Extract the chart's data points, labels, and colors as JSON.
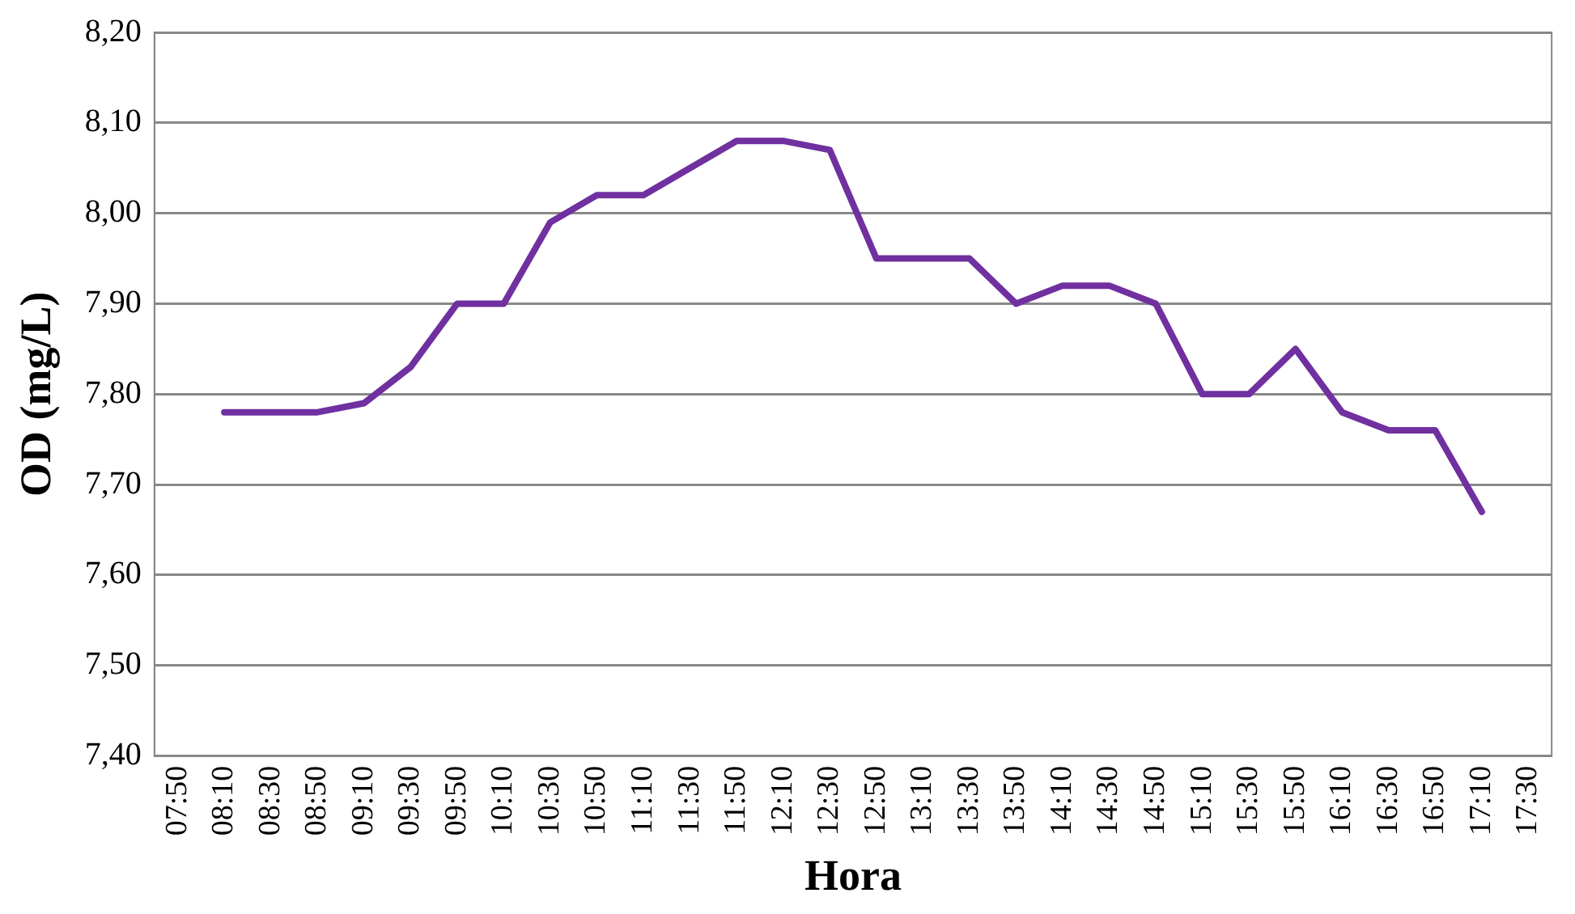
{
  "chart_data": {
    "type": "line",
    "xlabel": "Hora",
    "ylabel": "OD (mg/L)",
    "categories": [
      "07:50",
      "08:10",
      "08:30",
      "08:50",
      "09:10",
      "09:30",
      "09:50",
      "10:10",
      "10:30",
      "10:50",
      "11:10",
      "11:30",
      "11:50",
      "12:10",
      "12:30",
      "12:50",
      "13:10",
      "13:30",
      "13:50",
      "14:10",
      "14:30",
      "14:50",
      "15:10",
      "15:30",
      "15:50",
      "16:10",
      "16:30",
      "16:50",
      "17:10",
      "17:30"
    ],
    "series": [
      {
        "color": "#7030a0",
        "values": [
          null,
          7.78,
          7.78,
          7.78,
          7.79,
          7.83,
          7.9,
          7.9,
          7.99,
          8.02,
          8.02,
          8.05,
          8.08,
          8.08,
          8.07,
          7.95,
          7.95,
          7.95,
          7.9,
          7.92,
          7.92,
          7.9,
          7.8,
          7.8,
          7.85,
          7.78,
          7.76,
          7.76,
          7.67,
          null
        ]
      }
    ],
    "ylim": [
      7.4,
      8.2
    ],
    "yticks": [
      {
        "value": 7.4,
        "label": "7,40"
      },
      {
        "value": 7.5,
        "label": "7,50"
      },
      {
        "value": 7.6,
        "label": "7,60"
      },
      {
        "value": 7.7,
        "label": "7,70"
      },
      {
        "value": 7.8,
        "label": "7,80"
      },
      {
        "value": 7.9,
        "label": "7,90"
      },
      {
        "value": 8.0,
        "label": "8,00"
      },
      {
        "value": 8.1,
        "label": "8,10"
      },
      {
        "value": 8.2,
        "label": "8,20"
      }
    ],
    "grid": "y",
    "legend": false,
    "marker": "none",
    "line_style": "solid"
  }
}
